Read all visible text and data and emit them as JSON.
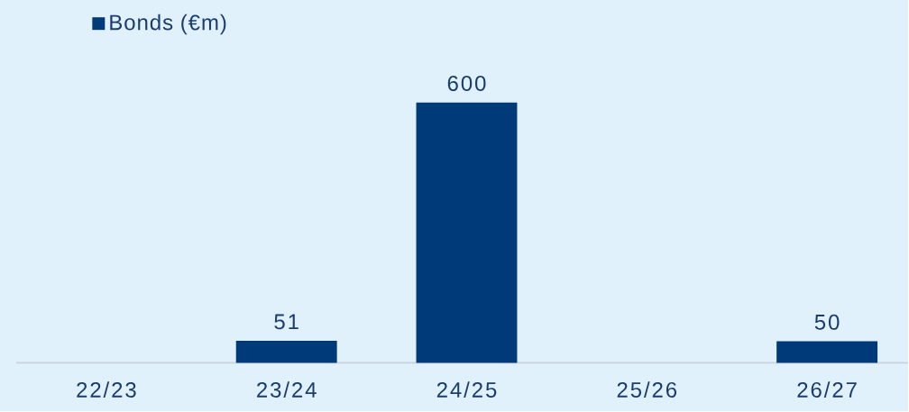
{
  "chart_data": {
    "type": "bar",
    "categories": [
      "22/23",
      "23/24",
      "24/25",
      "25/26",
      "26/27"
    ],
    "series": [
      {
        "name": "Bonds (€m)",
        "color": "#003a78",
        "values": [
          null,
          51,
          600,
          null,
          50
        ]
      }
    ],
    "tick_labels": "x",
    "legend": "top left",
    "data_labels": true
  }
}
